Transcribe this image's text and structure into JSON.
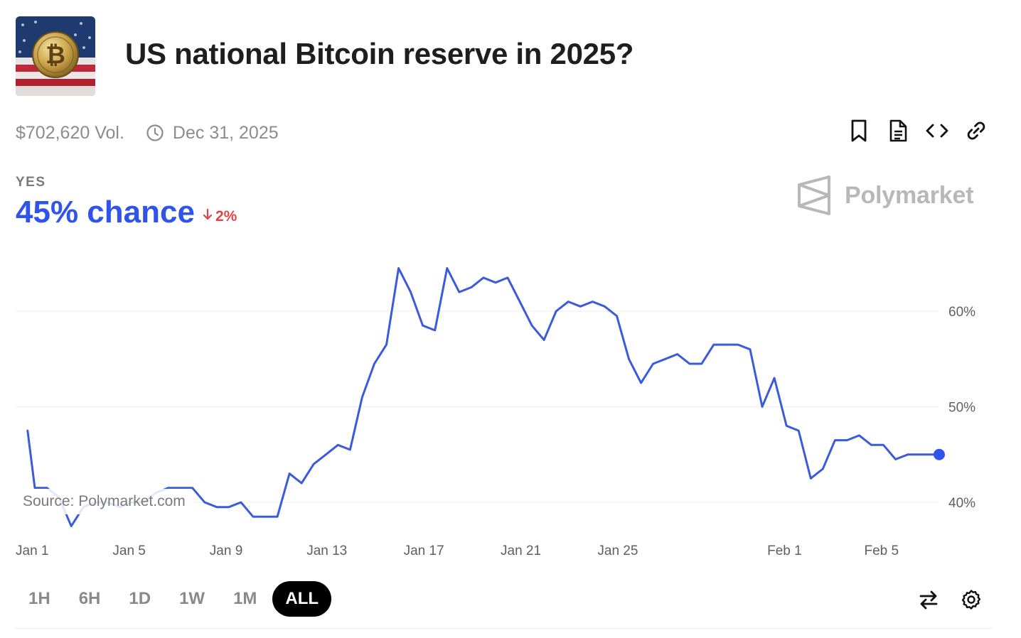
{
  "market": {
    "title": "US national Bitcoin reserve in 2025?",
    "volume": "$702,620 Vol.",
    "end_date": "Dec 31, 2025",
    "outcome_label": "YES",
    "chance_text": "45% chance",
    "delta_text": "2%",
    "delta_direction": "down",
    "brand": "Polymarket",
    "source": "Source: Polymarket.com"
  },
  "actions": [
    "bookmark-icon",
    "document-icon",
    "embed-code-icon",
    "link-icon"
  ],
  "ranges": [
    {
      "label": "1H",
      "active": false
    },
    {
      "label": "6H",
      "active": false
    },
    {
      "label": "1D",
      "active": false
    },
    {
      "label": "1W",
      "active": false
    },
    {
      "label": "1M",
      "active": false
    },
    {
      "label": "ALL",
      "active": true
    }
  ],
  "tools": [
    "swap-icon",
    "settings-icon"
  ],
  "colors": {
    "accent": "#2f54eb",
    "line": "#3b5bdb",
    "negative": "#e04545",
    "muted": "#8c8c8c"
  },
  "chart_data": {
    "type": "line",
    "title": "",
    "xlabel": "",
    "ylabel": "",
    "y_unit": "%",
    "ylim": [
      36.5,
      69.5
    ],
    "yticks": [
      40,
      50,
      60
    ],
    "ytick_labels": [
      "40%",
      "50%",
      "60%"
    ],
    "xticks": [
      0,
      4,
      8,
      12,
      16,
      20,
      24,
      31,
      35
    ],
    "xtick_labels": [
      "Jan 1",
      "Jan 5",
      "Jan 9",
      "Jan 13",
      "Jan 17",
      "Jan 21",
      "Jan 25",
      "Feb 1",
      "Feb 5"
    ],
    "grid": true,
    "series": [
      {
        "x": [
          0.2,
          0.5,
          1.0,
          1.5,
          2.0,
          2.5,
          3.0,
          3.5,
          4.0,
          4.5,
          5.0,
          5.5,
          6.0,
          6.5,
          7.0,
          7.5,
          8.0,
          8.5,
          9.0,
          9.5,
          10.0,
          10.5,
          11.0,
          11.5,
          12.0,
          12.5,
          13.0,
          13.5,
          14.0,
          14.5,
          15.0,
          15.5,
          16.0,
          16.5,
          17.0,
          17.5,
          18.0,
          18.5,
          19.0,
          19.5,
          20.0,
          20.5,
          21.0,
          21.5,
          22.0,
          22.5,
          23.0,
          23.5,
          24.0,
          24.5,
          25.0,
          25.5,
          26.0,
          26.5,
          27.0,
          27.5,
          28.0,
          28.5,
          29.0,
          29.5,
          30.0,
          30.5,
          31.0,
          31.5,
          32.0,
          32.5,
          33.0,
          33.5,
          34.0,
          34.5,
          35.0,
          35.5,
          36.0,
          36.5,
          37.0,
          37.5,
          37.8
        ],
        "values": [
          47.5,
          41.5,
          41.5,
          40.5,
          37.5,
          39.5,
          40.0,
          40.0,
          39.5,
          40.0,
          40.0,
          41.0,
          41.5,
          41.5,
          41.5,
          40.0,
          39.5,
          39.5,
          40.0,
          38.5,
          38.5,
          38.5,
          43.0,
          42.0,
          44.0,
          45.0,
          46.0,
          45.5,
          51.0,
          54.5,
          56.5,
          64.5,
          62.0,
          58.5,
          58.0,
          64.5,
          62.0,
          62.5,
          63.5,
          63.0,
          63.5,
          61.0,
          58.5,
          57.0,
          60.0,
          61.0,
          60.5,
          61.0,
          60.5,
          59.5,
          55.0,
          52.5,
          54.5,
          55.0,
          55.5,
          54.5,
          54.5,
          56.5,
          56.5,
          56.5,
          56.0,
          50.0,
          53.0,
          48.0,
          47.5,
          42.5,
          43.5,
          46.5,
          46.5,
          47.0,
          46.0,
          46.0,
          44.5,
          45.0,
          45.0,
          45.0,
          45.0
        ]
      }
    ],
    "last_value": 45
  }
}
